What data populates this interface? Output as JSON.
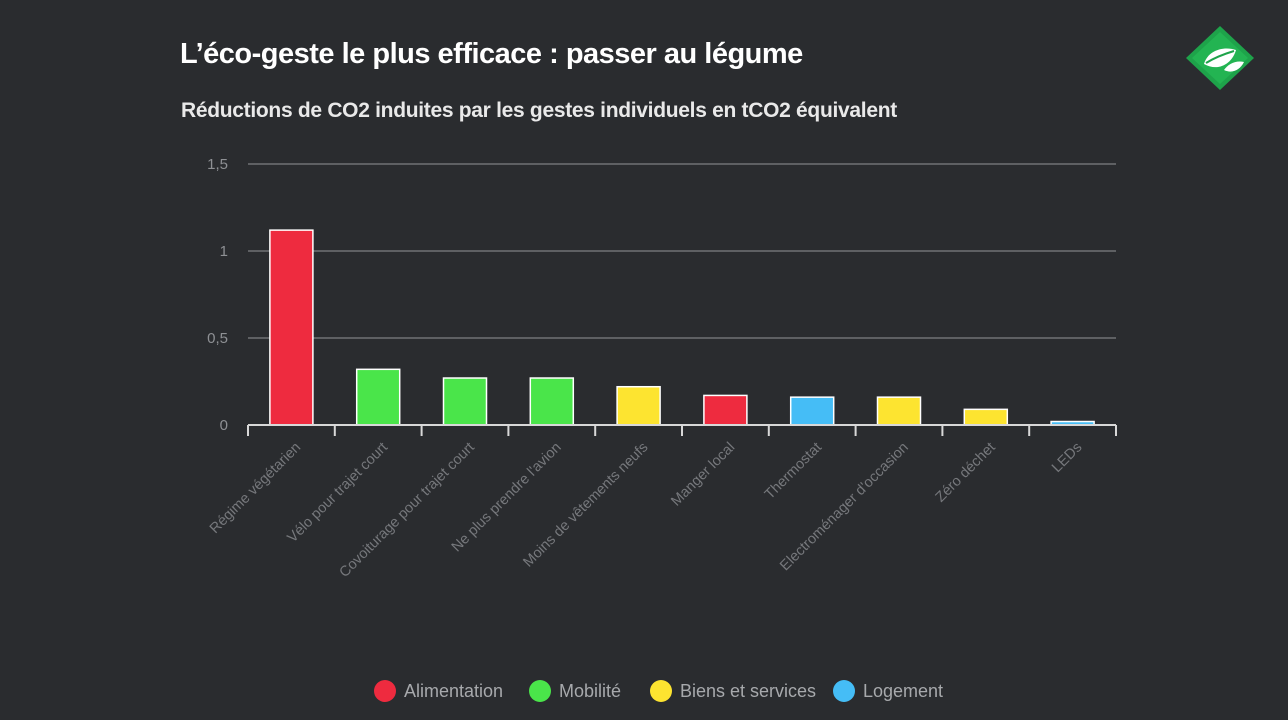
{
  "chart_data": {
    "type": "bar",
    "title": "L’éco-geste le plus efficace : passer au légume",
    "subtitle": "Réductions de CO2 induites par les gestes individuels en tCO2 équivalent",
    "xlabel": "",
    "ylabel": "",
    "ylim": [
      0,
      1.5
    ],
    "yticks": [
      0,
      0.5,
      1,
      1.5
    ],
    "ytick_labels": [
      "0",
      "0,5",
      "1",
      "1,5"
    ],
    "grid": true,
    "categories": [
      "Régime végétarien",
      "Vélo pour trajet court",
      "Covoiturage pour trajet court",
      "Ne plus prendre l'avion",
      "Moins de vêtements neufs",
      "Manger local",
      "Thermostat",
      "Electroménager d'occasion",
      "Zéro déchet",
      "LEDs"
    ],
    "values": [
      1.12,
      0.32,
      0.27,
      0.27,
      0.22,
      0.17,
      0.16,
      0.16,
      0.09,
      0.02
    ],
    "groups": [
      "Alimentation",
      "Mobilité",
      "Mobilité",
      "Mobilité",
      "Biens et services",
      "Alimentation",
      "Logement",
      "Biens et services",
      "Biens et services",
      "Logement"
    ],
    "legend": {
      "placement": "bottom",
      "entries": [
        {
          "name": "Alimentation",
          "color": "#ee2b3f"
        },
        {
          "name": "Mobilité",
          "color": "#4ae54a"
        },
        {
          "name": "Biens et services",
          "color": "#fde430"
        },
        {
          "name": "Logement",
          "color": "#45bdf6"
        }
      ]
    }
  },
  "colors": {
    "background": "#2a2c2f",
    "gridline": "#7d7f82",
    "axis": "#d8d8d8",
    "logo_green": "#1ea34a"
  },
  "logo": {
    "icon": "leaf-logo-icon"
  }
}
